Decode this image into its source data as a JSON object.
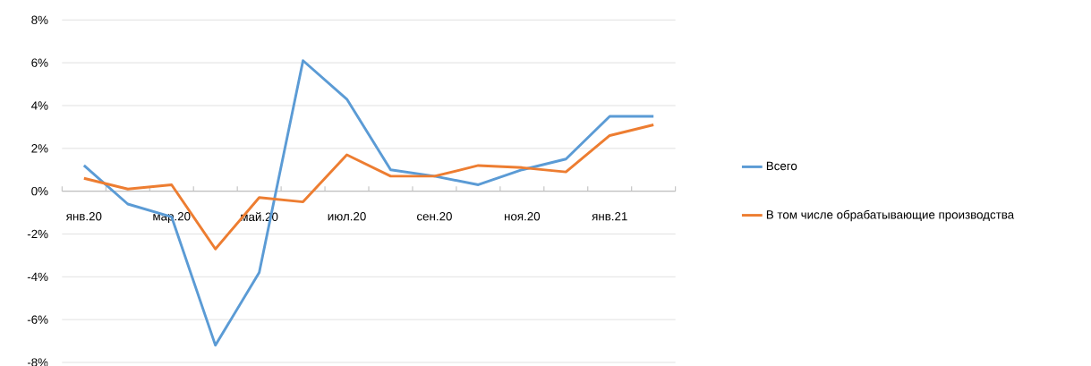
{
  "chart_data": {
    "type": "line",
    "categories": [
      "янв.20",
      null,
      "мар.20",
      null,
      "май.20",
      null,
      "июл.20",
      null,
      "сен.20",
      null,
      "ноя.20",
      null,
      "янв.21",
      null
    ],
    "series": [
      {
        "name": "Всего",
        "color": "#5b9bd5",
        "values": [
          1.2,
          -0.6,
          -1.2,
          -7.2,
          -3.8,
          6.1,
          4.3,
          1.0,
          0.7,
          0.3,
          1.0,
          1.5,
          3.5,
          3.5
        ]
      },
      {
        "name": "В том числе обрабатывающие производства",
        "color": "#ed7d31",
        "values": [
          0.6,
          0.1,
          0.3,
          -2.7,
          -0.3,
          -0.5,
          1.7,
          0.7,
          0.7,
          1.2,
          1.1,
          0.9,
          2.6,
          3.1
        ]
      }
    ],
    "ylim": [
      -8,
      8
    ],
    "yticks": [
      {
        "value": -8,
        "label": "-8%"
      },
      {
        "value": -6,
        "label": "-6%"
      },
      {
        "value": -4,
        "label": "-4%"
      },
      {
        "value": -2,
        "label": "-2%"
      },
      {
        "value": 0,
        "label": "0%"
      },
      {
        "value": 2,
        "label": "2%"
      },
      {
        "value": 4,
        "label": "4%"
      },
      {
        "value": 6,
        "label": "6%"
      },
      {
        "value": 8,
        "label": "8%"
      }
    ],
    "grid": "y",
    "legend": "right",
    "marker": "none",
    "line_style": "solid"
  }
}
